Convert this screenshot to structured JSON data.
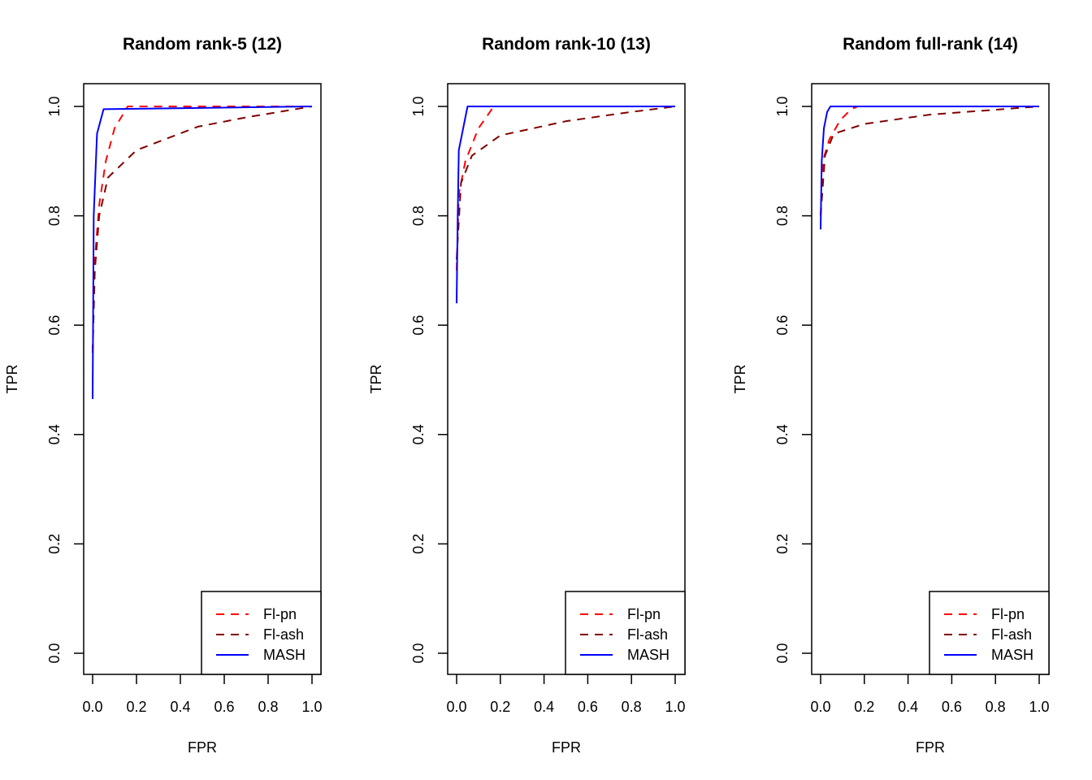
{
  "chart_data": [
    {
      "type": "line",
      "title": "Random rank-5 (12)",
      "xlabel": "FPR",
      "ylabel": "TPR",
      "xlim": [
        0,
        1
      ],
      "ylim": [
        0,
        1
      ],
      "xticks": [
        "0.0",
        "0.2",
        "0.4",
        "0.6",
        "0.8",
        "1.0"
      ],
      "yticks": [
        "0.0",
        "0.2",
        "0.4",
        "0.6",
        "0.8",
        "1.0"
      ],
      "grid": false,
      "legend_position": "bottom-right",
      "series": [
        {
          "name": "Fl-pn",
          "color": "#ff0000",
          "dash": "dashed",
          "x": [
            0,
            0.01,
            0.03,
            0.06,
            0.1,
            0.16,
            1.0
          ],
          "y": [
            0.55,
            0.72,
            0.82,
            0.9,
            0.96,
            1.0,
            1.0
          ]
        },
        {
          "name": "Fl-ash",
          "color": "#800000",
          "dash": "dashed",
          "x": [
            0,
            0.01,
            0.03,
            0.07,
            0.2,
            0.48,
            0.7,
            1.0
          ],
          "y": [
            0.55,
            0.7,
            0.8,
            0.87,
            0.92,
            0.963,
            0.98,
            1.0
          ]
        },
        {
          "name": "MASH",
          "color": "#0000ff",
          "dash": "solid",
          "x": [
            0,
            0.005,
            0.02,
            0.05,
            1.0
          ],
          "y": [
            0.465,
            0.8,
            0.95,
            0.995,
            1.0
          ]
        }
      ]
    },
    {
      "type": "line",
      "title": "Random rank-10 (13)",
      "xlabel": "FPR",
      "ylabel": "TPR",
      "xlim": [
        0,
        1
      ],
      "ylim": [
        0,
        1
      ],
      "xticks": [
        "0.0",
        "0.2",
        "0.4",
        "0.6",
        "0.8",
        "1.0"
      ],
      "yticks": [
        "0.0",
        "0.2",
        "0.4",
        "0.6",
        "0.8",
        "1.0"
      ],
      "grid": false,
      "legend_position": "bottom-right",
      "series": [
        {
          "name": "Fl-pn",
          "color": "#ff0000",
          "dash": "dashed",
          "x": [
            0,
            0.01,
            0.04,
            0.1,
            0.17,
            1.0
          ],
          "y": [
            0.7,
            0.84,
            0.9,
            0.96,
            1.0,
            1.0
          ]
        },
        {
          "name": "Fl-ash",
          "color": "#800000",
          "dash": "dashed",
          "x": [
            0,
            0.02,
            0.07,
            0.2,
            0.5,
            0.8,
            1.0
          ],
          "y": [
            0.72,
            0.86,
            0.91,
            0.947,
            0.973,
            0.99,
            1.0
          ]
        },
        {
          "name": "MASH",
          "color": "#0000ff",
          "dash": "solid",
          "x": [
            0,
            0.005,
            0.01,
            0.05,
            1.0
          ],
          "y": [
            0.64,
            0.8,
            0.92,
            1.0,
            1.0
          ]
        }
      ]
    },
    {
      "type": "line",
      "title": "Random full-rank (14)",
      "xlabel": "FPR",
      "ylabel": "TPR",
      "xlim": [
        0,
        1
      ],
      "ylim": [
        0,
        1
      ],
      "xticks": [
        "0.0",
        "0.2",
        "0.4",
        "0.6",
        "0.8",
        "1.0"
      ],
      "yticks": [
        "0.0",
        "0.2",
        "0.4",
        "0.6",
        "0.8",
        "1.0"
      ],
      "grid": false,
      "legend_position": "bottom-right",
      "series": [
        {
          "name": "Fl-pn",
          "color": "#ff0000",
          "dash": "dashed",
          "x": [
            0,
            0.01,
            0.04,
            0.09,
            0.14,
            0.17,
            1.0
          ],
          "y": [
            0.8,
            0.9,
            0.94,
            0.975,
            0.995,
            1.0,
            1.0
          ]
        },
        {
          "name": "Fl-ash",
          "color": "#800000",
          "dash": "dashed",
          "x": [
            0,
            0.02,
            0.06,
            0.2,
            0.5,
            1.0
          ],
          "y": [
            0.8,
            0.91,
            0.95,
            0.968,
            0.985,
            1.0
          ]
        },
        {
          "name": "MASH",
          "color": "#0000ff",
          "dash": "solid",
          "x": [
            0,
            0.005,
            0.015,
            0.03,
            0.045,
            1.0
          ],
          "y": [
            0.775,
            0.9,
            0.96,
            0.99,
            1.0,
            1.0
          ]
        }
      ]
    }
  ]
}
